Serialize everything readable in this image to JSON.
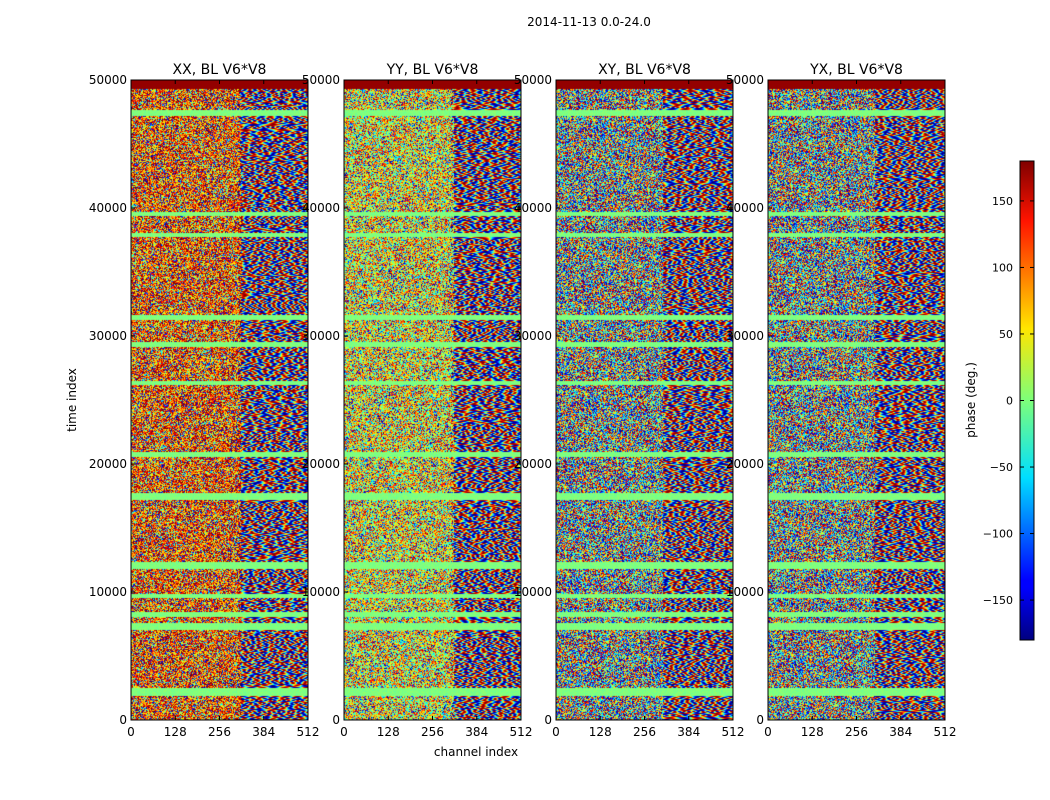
{
  "figure": {
    "suptitle": "2014-11-13 0.0-24.0"
  },
  "chart_data": {
    "type": "heatmap",
    "title": "2014-11-13 0.0-24.0",
    "xlabel": "channel index",
    "ylabel": "time index",
    "xlim": [
      0,
      512
    ],
    "ylim": [
      0,
      50000
    ],
    "x_ticks": [
      0,
      128,
      256,
      384,
      512
    ],
    "y_ticks": [
      0,
      10000,
      20000,
      30000,
      40000,
      50000
    ],
    "panels": [
      {
        "title": "XX, BL V6*V8",
        "pol": "XX"
      },
      {
        "title": "YY, BL V6*V8",
        "pol": "YY"
      },
      {
        "title": "XY, BL V6*V8",
        "pol": "XY"
      },
      {
        "title": "YX, BL V6*V8",
        "pol": "YX"
      }
    ],
    "colorbar": {
      "label": "phase (deg.)",
      "range": [
        -180,
        180
      ],
      "ticks": [
        -150,
        -100,
        -50,
        0,
        50,
        100,
        150
      ],
      "tick_labels": [
        "−150",
        "−100",
        "−50",
        "0",
        "50",
        "100",
        "150"
      ],
      "colormap": "jet"
    },
    "flagged_time_bands": [
      [
        1900,
        2500
      ],
      [
        7100,
        7600
      ],
      [
        8100,
        8500
      ],
      [
        9600,
        9900
      ],
      [
        11800,
        12400
      ],
      [
        17200,
        17800
      ],
      [
        20600,
        21000
      ],
      [
        26200,
        26500
      ],
      [
        29200,
        29600
      ],
      [
        31300,
        31700
      ],
      [
        37800,
        38100
      ],
      [
        39400,
        39700
      ],
      [
        47200,
        47700
      ],
      [
        49300,
        50000
      ]
    ],
    "grid": false
  },
  "colors": {
    "flag": "#7dff7a",
    "top_band": "#800000"
  }
}
